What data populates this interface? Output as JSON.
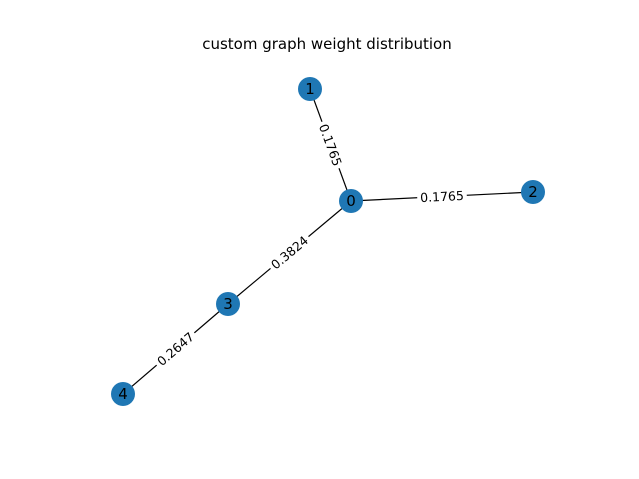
{
  "title": "custom graph weight distribution",
  "colors": {
    "node_fill": "#1f77b4",
    "edge_color": "#000000",
    "label_color": "#000000",
    "background": "#ffffff"
  },
  "nodes": [
    {
      "id": "0",
      "label": "0"
    },
    {
      "id": "1",
      "label": "1"
    },
    {
      "id": "2",
      "label": "2"
    },
    {
      "id": "3",
      "label": "3"
    },
    {
      "id": "4",
      "label": "4"
    }
  ],
  "edges": [
    {
      "source": "0",
      "target": "1",
      "weight": "0.1765"
    },
    {
      "source": "0",
      "target": "2",
      "weight": "0.1765"
    },
    {
      "source": "0",
      "target": "3",
      "weight": "0.3824"
    },
    {
      "source": "3",
      "target": "4",
      "weight": "0.2647"
    }
  ]
}
